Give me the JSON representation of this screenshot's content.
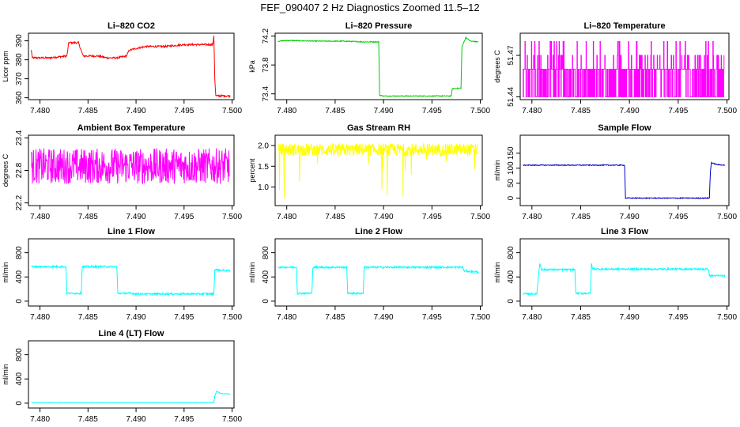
{
  "figure": {
    "title": "FEF_090407  2 Hz Diagnostics Zoomed 11.5–12"
  },
  "chart_data": [
    {
      "type": "line",
      "title": "Li–820 CO2",
      "ylabel": "Licor ppm",
      "color": "#ff0000",
      "xlim": [
        7.4788,
        7.5002
      ],
      "ylim": [
        359,
        394
      ],
      "xticks": [
        "7.480",
        "7.485",
        "7.490",
        "7.495",
        "7.500"
      ],
      "yticks": [
        "360",
        "370",
        "380",
        "390"
      ],
      "yticks_rotated": true,
      "noise": 0.5,
      "series": [
        {
          "name": "CO2",
          "x": [
            7.4791,
            7.4792,
            7.4798,
            7.481,
            7.4828,
            7.483,
            7.484,
            7.4845,
            7.485,
            7.486,
            7.487,
            7.488,
            7.489,
            7.4893,
            7.49,
            7.491,
            7.493,
            7.495,
            7.497,
            7.498,
            7.4981,
            7.4982,
            7.4983,
            7.499,
            7.4998
          ],
          "y": [
            385,
            381,
            381,
            381,
            382,
            389,
            389,
            382,
            382,
            382,
            381,
            381,
            382,
            385,
            386,
            387,
            387,
            388,
            388,
            388,
            393,
            370,
            361,
            361,
            361
          ]
        }
      ]
    },
    {
      "type": "line",
      "title": "Li–820 Pressure",
      "ylabel": "kPa",
      "color": "#00cc00",
      "xlim": [
        7.4788,
        7.5002
      ],
      "ylim": [
        73.32,
        74.24
      ],
      "xticks": [
        "7.480",
        "7.485",
        "7.490",
        "7.495",
        "7.500"
      ],
      "yticks": [
        "73.4",
        "73.8",
        "74.2"
      ],
      "yticks_rotated": true,
      "noise": 0.006,
      "series": [
        {
          "name": "Pressure",
          "x": [
            7.4791,
            7.48,
            7.483,
            7.486,
            7.488,
            7.4895,
            7.4896,
            7.49,
            7.493,
            7.496,
            7.497,
            7.4971,
            7.498,
            7.4981,
            7.4985,
            7.499,
            7.4998
          ],
          "y": [
            74.13,
            74.14,
            74.13,
            74.13,
            74.12,
            74.12,
            73.38,
            73.37,
            73.37,
            73.37,
            73.37,
            73.47,
            73.48,
            74.05,
            74.18,
            74.13,
            74.12
          ]
        }
      ]
    },
    {
      "type": "line",
      "title": "Li–820 Temperature",
      "ylabel": "degrees C",
      "color": "#ff00ff",
      "xlim": [
        7.4788,
        7.5002
      ],
      "ylim": [
        51.438,
        51.486
      ],
      "xticks": [
        "7.480",
        "7.485",
        "7.490",
        "7.495",
        "7.500"
      ],
      "yticks": [
        "51.44",
        "51.47"
      ],
      "yticks_rotated": true,
      "quantized_levels": [
        51.44,
        51.46,
        51.47,
        51.48
      ],
      "series": [
        {
          "name": "Temperature",
          "x_range": [
            7.4791,
            7.4997
          ],
          "base_level": 51.46
        }
      ]
    },
    {
      "type": "line",
      "title": "Ambient Box Temperature",
      "ylabel": "degrees C",
      "color": "#ff00ff",
      "xlim": [
        7.4788,
        7.5002
      ],
      "ylim": [
        22.15,
        23.45
      ],
      "xticks": [
        "7.480",
        "7.485",
        "7.490",
        "7.495",
        "7.500"
      ],
      "yticks": [
        "22.2",
        "22.8",
        "23.4"
      ],
      "yticks_rotated": true,
      "series": [
        {
          "name": "Ambient",
          "x_range": [
            7.4791,
            7.4997
          ],
          "mean": 22.88,
          "spread": 0.33
        }
      ]
    },
    {
      "type": "line",
      "title": "Gas Stream RH",
      "ylabel": "percent",
      "color": "#ffff00",
      "xlim": [
        7.4788,
        7.5002
      ],
      "ylim": [
        0.55,
        2.25
      ],
      "xticks": [
        "7.480",
        "7.485",
        "7.490",
        "7.495",
        "7.500"
      ],
      "yticks": [
        "1.0",
        "1.5",
        "2.0"
      ],
      "yticks_rotated": false,
      "series": [
        {
          "name": "RH",
          "x_range": [
            7.4791,
            7.4997
          ],
          "mean": 1.9,
          "spread": 0.15,
          "min": 0.65
        }
      ]
    },
    {
      "type": "line",
      "title": "Sample Flow",
      "ylabel": "ml/min",
      "color": "#0000cc",
      "xlim": [
        7.4788,
        7.5002
      ],
      "ylim": [
        -25,
        210
      ],
      "xticks": [
        "7.480",
        "7.485",
        "7.490",
        "7.495",
        "7.500"
      ],
      "yticks": [
        "0",
        "50",
        "100",
        "150"
      ],
      "yticks_rotated": true,
      "noise": 1.5,
      "series": [
        {
          "name": "Sample Flow",
          "x": [
            7.4791,
            7.4895,
            7.4896,
            7.4982,
            7.4983,
            7.4984,
            7.499,
            7.4998
          ],
          "y": [
            110,
            110,
            0,
            0,
            90,
            118,
            112,
            110
          ]
        }
      ]
    },
    {
      "type": "line",
      "title": "Line 1 Flow",
      "ylabel": "ml/min",
      "color": "#00ffff",
      "xlim": [
        7.4788,
        7.5002
      ],
      "ylim": [
        -80,
        1030
      ],
      "xticks": [
        "7.480",
        "7.485",
        "7.490",
        "7.495",
        "7.500"
      ],
      "yticks": [
        "0",
        "400",
        "800"
      ],
      "yticks_rotated": true,
      "noise": 15,
      "series": [
        {
          "name": "Line 1",
          "x": [
            7.4791,
            7.4827,
            7.4828,
            7.4843,
            7.4844,
            7.488,
            7.4881,
            7.4895,
            7.49,
            7.4981,
            7.4982,
            7.4998
          ],
          "y": [
            570,
            570,
            130,
            130,
            570,
            570,
            130,
            130,
            120,
            120,
            520,
            500
          ]
        }
      ]
    },
    {
      "type": "line",
      "title": "Line 2 Flow",
      "ylabel": "ml/min",
      "color": "#00ffff",
      "xlim": [
        7.4788,
        7.5002
      ],
      "ylim": [
        -80,
        1030
      ],
      "xticks": [
        "7.480",
        "7.485",
        "7.490",
        "7.495",
        "7.500"
      ],
      "yticks": [
        "0",
        "400",
        "800"
      ],
      "yticks_rotated": true,
      "noise": 15,
      "series": [
        {
          "name": "Line 2",
          "x": [
            7.4791,
            7.481,
            7.4811,
            7.4826,
            7.4827,
            7.4862,
            7.4863,
            7.4879,
            7.488,
            7.4982,
            7.4983,
            7.4998
          ],
          "y": [
            560,
            560,
            130,
            130,
            560,
            560,
            130,
            130,
            560,
            560,
            500,
            480
          ]
        }
      ]
    },
    {
      "type": "line",
      "title": "Line 3 Flow",
      "ylabel": "ml/min",
      "color": "#00ffff",
      "xlim": [
        7.4788,
        7.5002
      ],
      "ylim": [
        -80,
        1030
      ],
      "xticks": [
        "7.480",
        "7.485",
        "7.490",
        "7.495",
        "7.500"
      ],
      "yticks": [
        "0",
        "400",
        "800"
      ],
      "yticks_rotated": true,
      "noise": 15,
      "series": [
        {
          "name": "Line 3",
          "x": [
            7.4791,
            7.4805,
            7.4806,
            7.4808,
            7.481,
            7.4844,
            7.4845,
            7.486,
            7.4861,
            7.4862,
            7.487,
            7.4981,
            7.4982,
            7.4998
          ],
          "y": [
            120,
            120,
            300,
            620,
            520,
            520,
            130,
            130,
            620,
            540,
            530,
            530,
            420,
            420
          ]
        }
      ]
    },
    {
      "type": "line",
      "title": "Line 4 (LT) Flow",
      "ylabel": "ml/min",
      "color": "#00ffff",
      "xlim": [
        7.4788,
        7.5002
      ],
      "ylim": [
        -80,
        1030
      ],
      "xticks": [
        "7.480",
        "7.485",
        "7.490",
        "7.495",
        "7.500"
      ],
      "yticks": [
        "0",
        "400",
        "800"
      ],
      "yticks_rotated": true,
      "noise": 3,
      "series": [
        {
          "name": "Line 4",
          "x": [
            7.4791,
            7.4981,
            7.4982,
            7.4984,
            7.4988,
            7.4998
          ],
          "y": [
            10,
            10,
            120,
            200,
            160,
            150
          ]
        }
      ]
    }
  ]
}
